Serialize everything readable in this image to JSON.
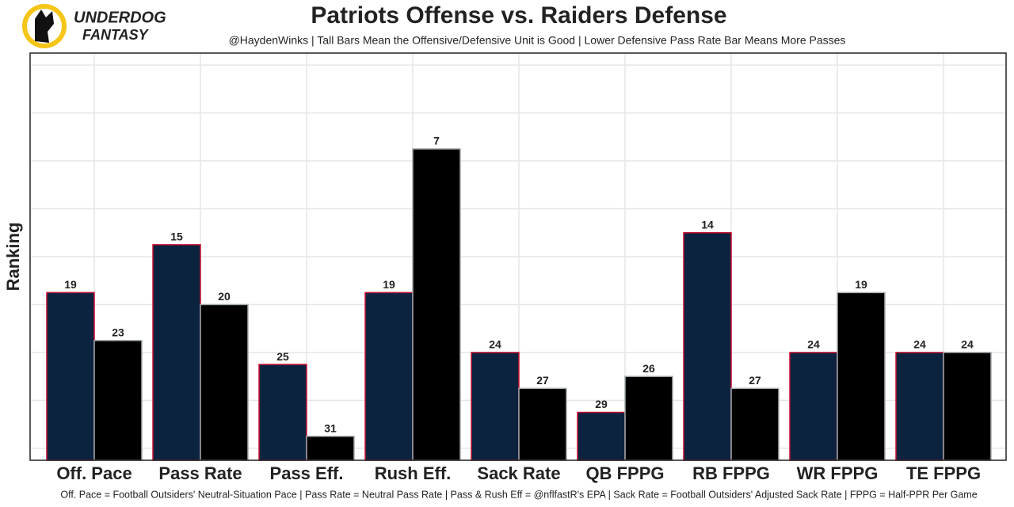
{
  "chart_data": {
    "type": "bar",
    "title": "Patriots Offense vs. Raiders Defense",
    "subtitle": "@HaydenWinks | Tall Bars Mean the Offensive/Defensive Unit is Good | Lower Defensive Pass Rate Bar Means More Passes",
    "caption": "Off. Pace = Football Outsiders' Neutral-Situation Pace | Pass Rate = Neutral Pass Rate | Pass & Rush Eff = @nflfastR's EPA | Sack Rate = Football Outsiders' Adjusted Sack Rate | FPPG = Half-PPR Per Game",
    "logo": [
      "UNDERDOG",
      "FANTASY"
    ],
    "y_label": "Ranking",
    "categories": [
      "Off. Pace",
      "Pass Rate",
      "Pass Eff.",
      "Rush Eff.",
      "Sack Rate",
      "QB FPPG",
      "RB FPPG",
      "WR FPPG",
      "TE FPPG"
    ],
    "series": [
      {
        "color": "#0c2340",
        "stroke": "#c8102e",
        "values": [
          19,
          15,
          25,
          19,
          24,
          29,
          14,
          24,
          24
        ]
      },
      {
        "color": "#000000",
        "stroke": "#a5acaf",
        "values": [
          23,
          20,
          31,
          7,
          27,
          26,
          27,
          19,
          24
        ]
      }
    ],
    "ylim": [
      33,
      -1
    ],
    "yticks": [
      32,
      28,
      24,
      20,
      16,
      12,
      8,
      4,
      0
    ],
    "grid": true
  }
}
